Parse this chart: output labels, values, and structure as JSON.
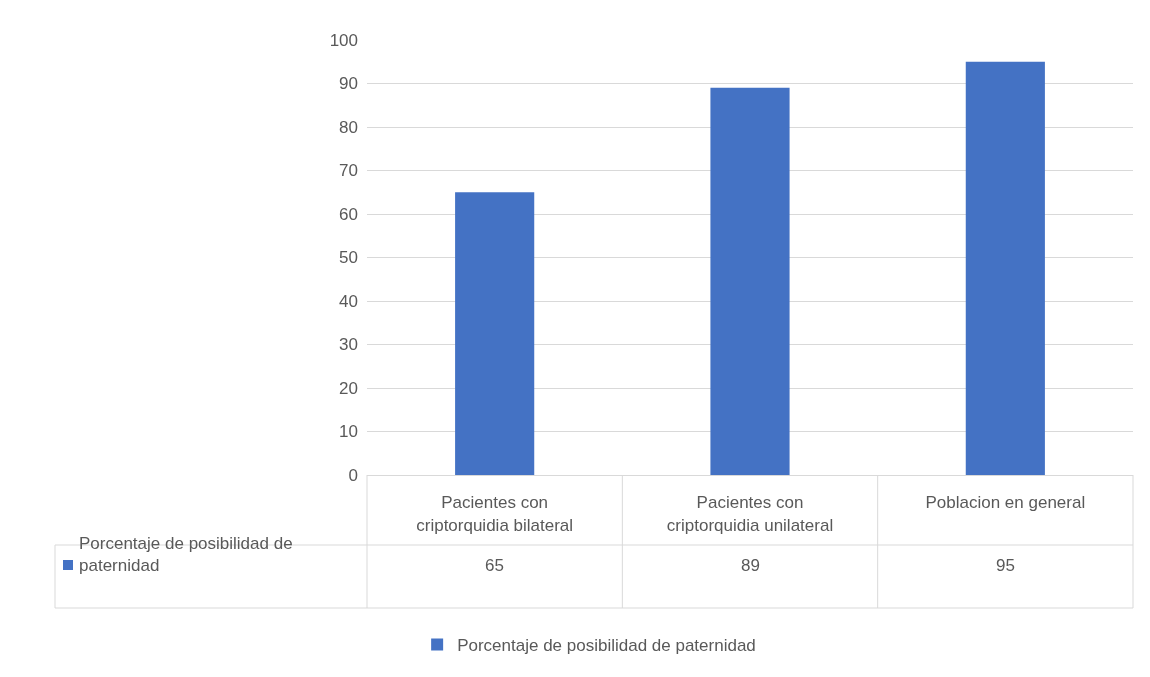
{
  "chart_data": {
    "type": "bar",
    "categories": [
      "Pacientes con criptorquidia bilateral",
      "Pacientes con criptorquidia unilateral",
      "Poblacion en general"
    ],
    "series": [
      {
        "name": "Porcentaje de posibilidad de paternidad",
        "color": "#4472c4",
        "values": [
          65,
          89,
          95
        ]
      }
    ],
    "ylim": [
      0,
      100
    ],
    "yticks": [
      0,
      10,
      20,
      30,
      40,
      50,
      60,
      70,
      80,
      90,
      100
    ],
    "grid": "y",
    "legend": "bottom",
    "data_labels": true
  }
}
